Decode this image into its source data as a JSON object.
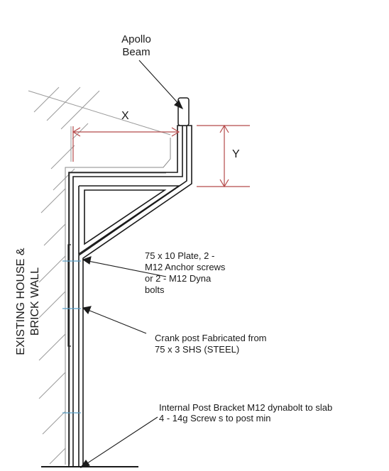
{
  "labels": {
    "beam_line1": "Apollo",
    "beam_line2": "Beam",
    "dim_x": "X",
    "dim_y": "Y",
    "wall_line1": "EXISTING  HOUSE  &",
    "wall_line2": "BRICK WALL",
    "plate_line1": "75 x 10 Plate, 2 -",
    "plate_line2": "M12 Anchor screws",
    "plate_line3": "or 2 - M12 Dyna",
    "plate_line4": "bolts",
    "crank_line1": "Crank post Fabricated from",
    "crank_line2": "75 x 3 SHS (STEEL)",
    "bracket_line1": "Internal Post Bracket M12 dynabolt to slab",
    "bracket_line2": "4 - 14g Screw s to post min"
  },
  "colors": {
    "linework": "#1a1a1a",
    "hatch": "#9a9a9a",
    "wall_outline": "#8a8a8a",
    "dimension": "#b54a4a",
    "fixing_marks": "#5aa0c8"
  }
}
